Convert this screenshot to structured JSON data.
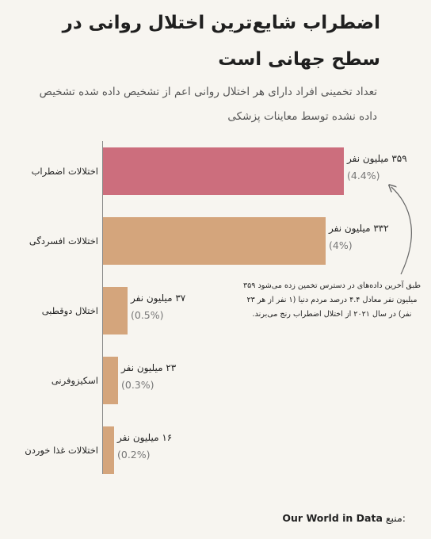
{
  "title": "اضطراب شایع‌ترین اختلال روانی در سطح جهانی است",
  "subtitle": "تعداد تخمینی افراد دارای هر اختلال روانی اعم از تشخیص داده شده تشخیص داده نشده توسط معاینات پزشکی",
  "colors": {
    "highlight": "#cc6e7d",
    "default": "#d4a57c",
    "background": "#f7f5f0"
  },
  "chart_data": {
    "type": "bar",
    "orientation": "horizontal",
    "title": "اضطراب شایع‌ترین اختلال روانی در سطح جهانی است",
    "categories": [
      "اختلالات اضطراب",
      "اختلالات افسردگی",
      "اختلال دوقطبی",
      "اسکیزوفرنی",
      "اختلالات غذا خوردن"
    ],
    "values": [
      359,
      332,
      37,
      23,
      16
    ],
    "value_labels": [
      "۳۵۹ میلیون نفر",
      "۳۳۲ میلیون نفر",
      "۳۷ میلیون نفر",
      "۲۳ میلیون نفر",
      "۱۶ میلیون نفر"
    ],
    "percent_labels": [
      "(4.4%)",
      "(4%)",
      "(0.5%)",
      "(0.3%)",
      "(0.2%)"
    ],
    "highlight_index": 0,
    "xlim": [
      0,
      359
    ],
    "grid": false
  },
  "annotation": "طبق آخرین داده‌های در دسترس تخمین زده می‌شود ۳۵۹ میلیون نفر معادل ۴.۴ درصد مردم دنیا (۱ نفر از هر ۲۳ نفر) در سال ۲۰۲۱ از اختلال اضطراب رنج می‌برند.",
  "source": {
    "label": "منبع:",
    "name": "Our World in Data"
  }
}
